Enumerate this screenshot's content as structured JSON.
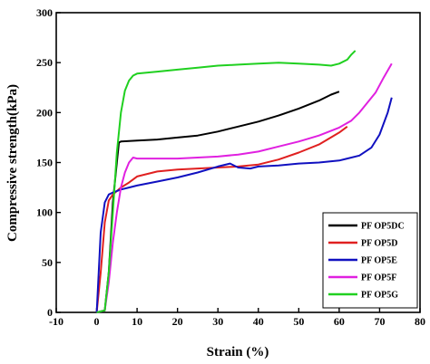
{
  "chart_data": {
    "type": "line",
    "xlabel": "Strain (%)",
    "ylabel": "Compressive strength(kPa)",
    "xlim": [
      -10,
      80
    ],
    "ylim": [
      0,
      300
    ],
    "xticks": [
      -10,
      0,
      10,
      20,
      30,
      40,
      50,
      60,
      70,
      80
    ],
    "yticks": [
      0,
      50,
      100,
      150,
      200,
      250,
      300
    ],
    "xtick_labels": [
      "-10",
      "0",
      "10",
      "20",
      "30",
      "40",
      "50",
      "60",
      "70",
      "80"
    ],
    "ytick_labels": [
      "0",
      "50",
      "100",
      "150",
      "200",
      "250",
      "300"
    ],
    "grid": false,
    "legend_position": "bottom-right",
    "series": [
      {
        "name": "PF OP5DC",
        "color": "#000000",
        "points": [
          [
            0,
            0
          ],
          [
            2,
            2
          ],
          [
            3,
            40
          ],
          [
            4,
            110
          ],
          [
            5,
            150
          ],
          [
            5.5,
            170
          ],
          [
            6,
            171
          ],
          [
            10,
            172
          ],
          [
            15,
            173
          ],
          [
            20,
            175
          ],
          [
            25,
            177
          ],
          [
            30,
            181
          ],
          [
            35,
            186
          ],
          [
            40,
            191
          ],
          [
            45,
            197
          ],
          [
            50,
            204
          ],
          [
            55,
            212
          ],
          [
            58,
            218
          ],
          [
            60,
            221
          ]
        ]
      },
      {
        "name": "PF OP5D",
        "color": "#e02020",
        "points": [
          [
            0,
            0
          ],
          [
            1,
            40
          ],
          [
            2,
            90
          ],
          [
            3,
            112
          ],
          [
            4,
            118
          ],
          [
            6,
            125
          ],
          [
            8,
            130
          ],
          [
            10,
            136
          ],
          [
            15,
            141
          ],
          [
            20,
            143
          ],
          [
            25,
            144
          ],
          [
            30,
            145
          ],
          [
            35,
            146
          ],
          [
            40,
            148
          ],
          [
            45,
            153
          ],
          [
            50,
            160
          ],
          [
            55,
            168
          ],
          [
            60,
            180
          ],
          [
            62,
            186
          ]
        ]
      },
      {
        "name": "PF OP5E",
        "color": "#1010c0",
        "points": [
          [
            0,
            0
          ],
          [
            0.5,
            40
          ],
          [
            1,
            80
          ],
          [
            2,
            110
          ],
          [
            3,
            118
          ],
          [
            4,
            120
          ],
          [
            6,
            123
          ],
          [
            8,
            125
          ],
          [
            10,
            127
          ],
          [
            15,
            131
          ],
          [
            20,
            135
          ],
          [
            25,
            140
          ],
          [
            30,
            146
          ],
          [
            33,
            149
          ],
          [
            35,
            145
          ],
          [
            38,
            144
          ],
          [
            40,
            146
          ],
          [
            45,
            147
          ],
          [
            50,
            149
          ],
          [
            55,
            150
          ],
          [
            60,
            152
          ],
          [
            65,
            157
          ],
          [
            68,
            165
          ],
          [
            70,
            178
          ],
          [
            72,
            200
          ],
          [
            73,
            215
          ]
        ]
      },
      {
        "name": "PF OP5F",
        "color": "#e020e0",
        "points": [
          [
            0,
            0
          ],
          [
            2,
            2
          ],
          [
            3,
            30
          ],
          [
            4,
            70
          ],
          [
            5,
            100
          ],
          [
            6,
            125
          ],
          [
            7,
            140
          ],
          [
            8,
            150
          ],
          [
            9,
            155
          ],
          [
            10,
            154
          ],
          [
            15,
            154
          ],
          [
            20,
            154
          ],
          [
            25,
            155
          ],
          [
            30,
            156
          ],
          [
            35,
            158
          ],
          [
            40,
            161
          ],
          [
            45,
            166
          ],
          [
            50,
            171
          ],
          [
            55,
            177
          ],
          [
            60,
            185
          ],
          [
            63,
            192
          ],
          [
            65,
            200
          ],
          [
            67,
            210
          ],
          [
            69,
            220
          ],
          [
            71,
            235
          ],
          [
            73,
            249
          ]
        ]
      },
      {
        "name": "PF OP5G",
        "color": "#20d020",
        "points": [
          [
            0,
            0
          ],
          [
            2,
            2
          ],
          [
            3,
            40
          ],
          [
            4,
            100
          ],
          [
            5,
            160
          ],
          [
            6,
            200
          ],
          [
            7,
            222
          ],
          [
            8,
            232
          ],
          [
            9,
            237
          ],
          [
            10,
            239
          ],
          [
            15,
            241
          ],
          [
            20,
            243
          ],
          [
            25,
            245
          ],
          [
            30,
            247
          ],
          [
            35,
            248
          ],
          [
            40,
            249
          ],
          [
            45,
            250
          ],
          [
            50,
            249
          ],
          [
            55,
            248
          ],
          [
            58,
            247
          ],
          [
            60,
            249
          ],
          [
            62,
            253
          ],
          [
            63,
            258
          ],
          [
            64,
            262
          ]
        ]
      }
    ]
  }
}
